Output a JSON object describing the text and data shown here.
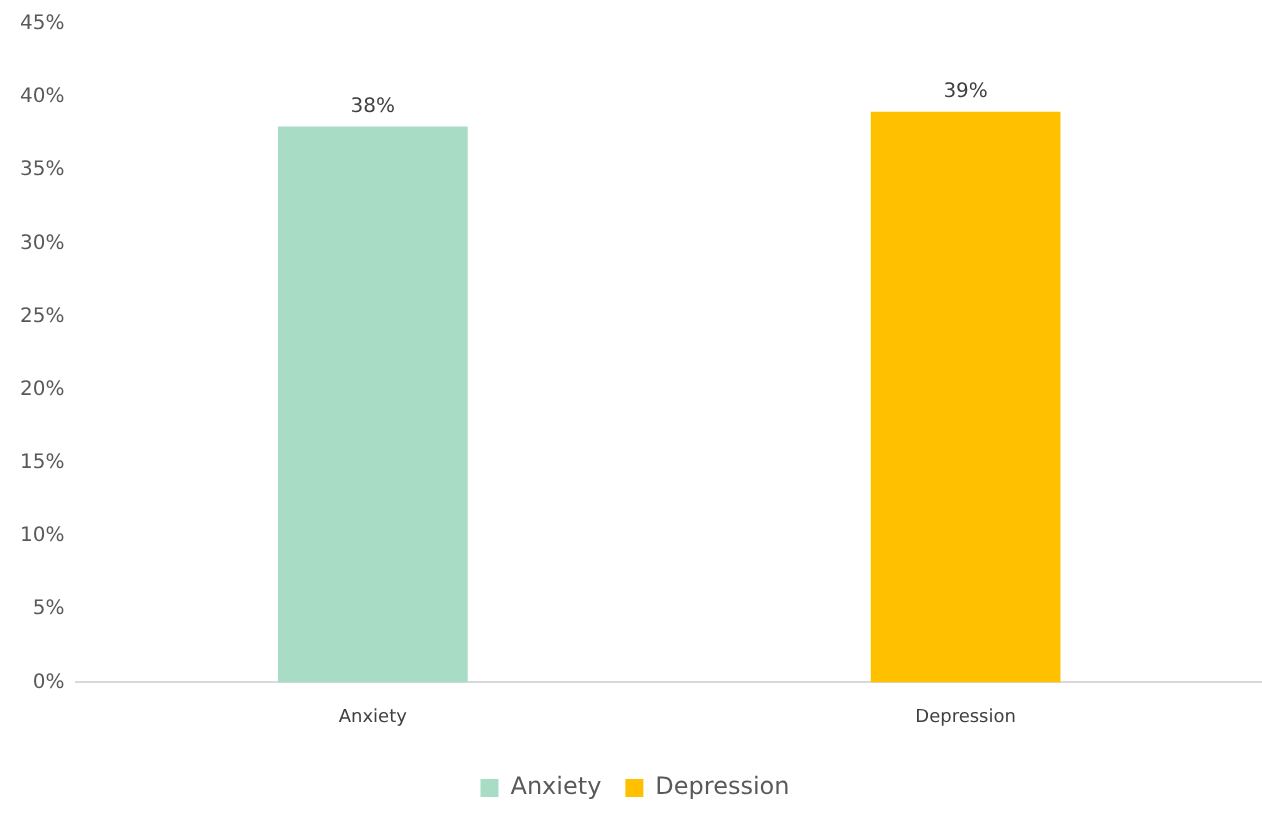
{
  "chart_data": {
    "type": "bar",
    "categories": [
      "Anxiety",
      "Depression"
    ],
    "series": [
      {
        "name": "Anxiety",
        "color": "#a8dcc5",
        "values": [
          38,
          null
        ],
        "value_labels": [
          "38%",
          null
        ]
      },
      {
        "name": "Depression",
        "color": "#ffc000",
        "values": [
          null,
          39
        ],
        "value_labels": [
          null,
          "39%"
        ]
      }
    ],
    "ylim": [
      0,
      45
    ],
    "yticks": [
      {
        "value": 0,
        "label": "0%"
      },
      {
        "value": 5,
        "label": "5%"
      },
      {
        "value": 10,
        "label": "10%"
      },
      {
        "value": 15,
        "label": "15%"
      },
      {
        "value": 20,
        "label": "20%"
      },
      {
        "value": 25,
        "label": "25%"
      },
      {
        "value": 30,
        "label": "30%"
      },
      {
        "value": 35,
        "label": "35%"
      },
      {
        "value": 40,
        "label": "40%"
      },
      {
        "value": 45,
        "label": "45%"
      }
    ],
    "grid": false,
    "legend": "bottom"
  }
}
